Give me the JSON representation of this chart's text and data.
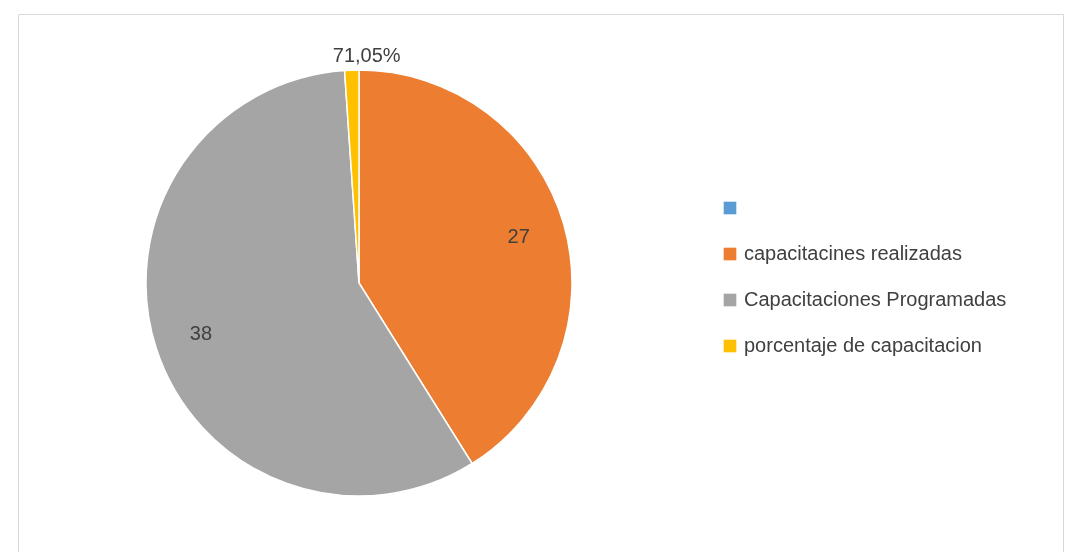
{
  "chart_data": {
    "type": "pie",
    "categories": [
      null,
      "capacitacines realizadas",
      "Capacitaciones Programadas",
      "porcentaje de capacitacion"
    ],
    "values": [
      0,
      27,
      38,
      0.7105
    ],
    "value_labels": [
      null,
      "27",
      "38",
      "71,05%"
    ],
    "colors": [
      "#5b9bd5",
      "#ed7d31",
      "#a5a5a5",
      "#ffc000"
    ],
    "legend": "right"
  }
}
